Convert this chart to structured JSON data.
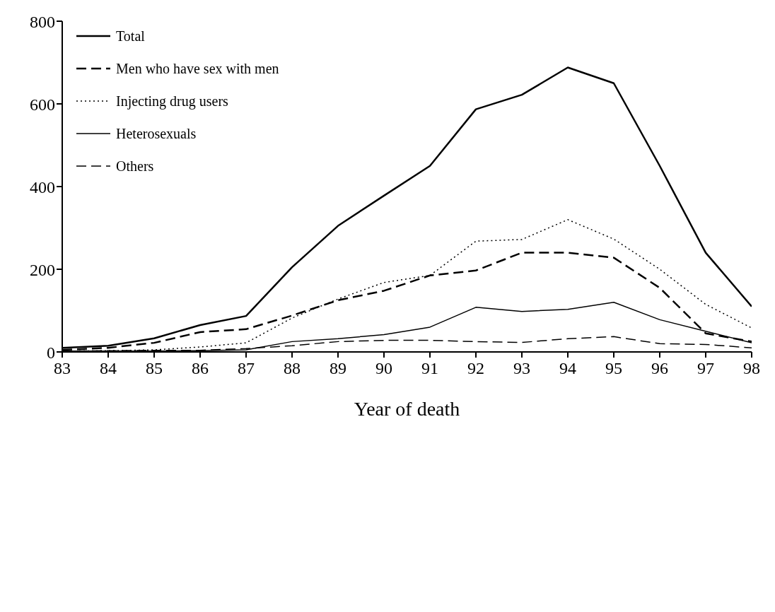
{
  "chart_data": {
    "type": "line",
    "xlabel": "Year of death",
    "x": [
      83,
      84,
      85,
      86,
      87,
      88,
      89,
      90,
      91,
      92,
      93,
      94,
      95,
      96,
      97,
      98
    ],
    "xlim": [
      83,
      98
    ],
    "xticks": [
      83,
      84,
      85,
      86,
      87,
      88,
      89,
      90,
      91,
      92,
      93,
      94,
      95,
      96,
      97,
      98
    ],
    "ylim": [
      0,
      800
    ],
    "yticks": [
      0,
      200,
      400,
      600,
      800
    ],
    "grid": false,
    "legend": "top left",
    "marker": "none",
    "series": [
      {
        "name": "Total",
        "color": "#000000",
        "line_style": "solid",
        "values": [
          10,
          15,
          33,
          65,
          87,
          205,
          305,
          378,
          450,
          587,
          622,
          688,
          650,
          450,
          240,
          110
        ]
      },
      {
        "name": "Men who have sex with men",
        "color": "#000000",
        "line_style": "dashed",
        "values": [
          5,
          10,
          22,
          48,
          55,
          88,
          125,
          148,
          185,
          197,
          240,
          240,
          228,
          155,
          45,
          25
        ]
      },
      {
        "name": "Injecting drug users",
        "color": "#000000",
        "line_style": "dotted",
        "values": [
          2,
          3,
          5,
          12,
          22,
          82,
          128,
          168,
          185,
          268,
          272,
          320,
          273,
          200,
          115,
          58
        ]
      },
      {
        "name": "Heterosexuals",
        "color": "#000000",
        "line_style": "solid",
        "values": [
          2,
          2,
          2,
          3,
          5,
          25,
          32,
          42,
          60,
          108,
          98,
          103,
          120,
          78,
          50,
          22
        ]
      },
      {
        "name": "Others",
        "color": "#000000",
        "line_style": "dashed",
        "values": [
          2,
          3,
          4,
          4,
          8,
          15,
          25,
          28,
          28,
          25,
          23,
          32,
          37,
          20,
          18,
          10
        ]
      }
    ]
  }
}
